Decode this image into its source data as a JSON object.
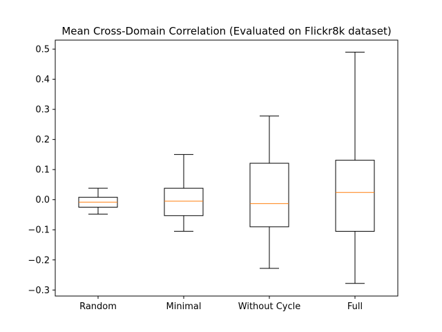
{
  "chart_data": {
    "type": "box",
    "title": "Mean Cross-Domain Correlation (Evaluated on Flickr8k dataset)",
    "xlabel": "",
    "ylabel": "",
    "ylim": [
      -0.32,
      0.53
    ],
    "yticks": [
      -0.3,
      -0.2,
      -0.1,
      0.0,
      0.1,
      0.2,
      0.3,
      0.4,
      0.5
    ],
    "ytick_labels": [
      "−0.3",
      "−0.2",
      "−0.1",
      "0.0",
      "0.1",
      "0.2",
      "0.3",
      "0.4",
      "0.5"
    ],
    "categories": [
      "Random",
      "Minimal",
      "Without Cycle",
      "Full"
    ],
    "boxes": [
      {
        "category": "Random",
        "whisker_low": -0.048,
        "q1": -0.025,
        "median": -0.008,
        "q3": 0.008,
        "whisker_high": 0.038
      },
      {
        "category": "Minimal",
        "whisker_low": -0.105,
        "q1": -0.053,
        "median": -0.005,
        "q3": 0.038,
        "whisker_high": 0.15
      },
      {
        "category": "Without Cycle",
        "whisker_low": -0.228,
        "q1": -0.09,
        "median": -0.013,
        "q3": 0.121,
        "whisker_high": 0.278
      },
      {
        "category": "Full",
        "whisker_low": -0.278,
        "q1": -0.105,
        "median": 0.024,
        "q3": 0.131,
        "whisker_high": 0.49
      }
    ],
    "grid": false,
    "colors": {
      "box": "#000000",
      "median": "#ff7f0e",
      "background": "#ffffff"
    }
  }
}
